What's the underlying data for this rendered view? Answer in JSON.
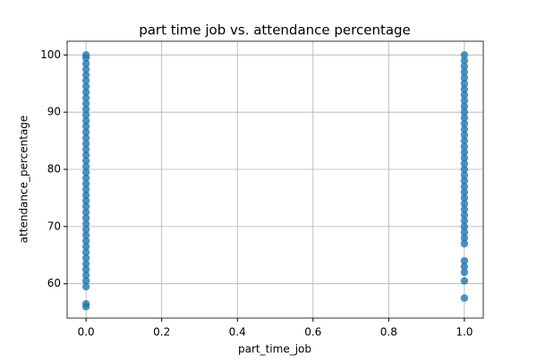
{
  "chart_data": {
    "type": "scatter",
    "title": "part time job vs. attendance percentage",
    "x_label": "part_time_job",
    "y_label": "attendance_percentage",
    "color": "#1f77b4",
    "grid": true,
    "xlim": [
      -0.05,
      1.05
    ],
    "ylim": [
      54.0,
      102.4
    ],
    "xticks": [
      {
        "value": 0,
        "label": "0.0"
      },
      {
        "value": 0.2,
        "label": "0.2"
      },
      {
        "value": 0.4,
        "label": "0.4"
      },
      {
        "value": 0.6,
        "label": "0.6"
      },
      {
        "value": 0.8,
        "label": "0.8"
      },
      {
        "value": 1,
        "label": "1.0"
      }
    ],
    "yticks": [
      60,
      70,
      80,
      90,
      100
    ],
    "x": [
      0,
      0,
      0,
      0,
      0,
      0,
      0,
      0,
      0,
      0,
      0,
      0,
      0,
      0,
      0,
      0,
      0,
      0,
      0,
      0,
      0,
      0,
      0,
      0,
      0,
      0,
      0,
      0,
      0,
      0,
      0,
      0,
      0,
      0,
      0,
      0,
      0,
      0,
      0,
      0,
      0,
      0,
      0,
      0,
      1,
      1,
      1,
      1,
      1,
      1,
      1,
      1,
      1,
      1,
      1,
      1,
      1,
      1,
      1,
      1,
      1,
      1,
      1,
      1,
      1,
      1,
      1,
      1,
      1,
      1,
      1,
      1,
      1,
      1,
      1,
      1,
      1,
      1,
      1,
      1,
      1,
      1,
      1
    ],
    "values": [
      56,
      56.5,
      59.5,
      60.5,
      61.5,
      62.5,
      63.5,
      64.5,
      65.5,
      66.5,
      67.5,
      68.5,
      69.5,
      70.5,
      71.5,
      72.5,
      73.5,
      74.5,
      75.5,
      76.5,
      77.5,
      78.5,
      79.5,
      80.5,
      81.5,
      82.5,
      83.5,
      84.5,
      85.5,
      86.5,
      87.5,
      88.5,
      89.5,
      90.5,
      91.5,
      92.5,
      93.5,
      94.5,
      95.5,
      96.5,
      97.5,
      98.5,
      99.5,
      100,
      57.5,
      60.5,
      62,
      63,
      64,
      67,
      68,
      69,
      70,
      71,
      72,
      73,
      74,
      75,
      76,
      77,
      78,
      79,
      80,
      81,
      82,
      83,
      84,
      85,
      86,
      87,
      88,
      89,
      90,
      91,
      92,
      93,
      94,
      95,
      96,
      97,
      98,
      99,
      100
    ]
  }
}
